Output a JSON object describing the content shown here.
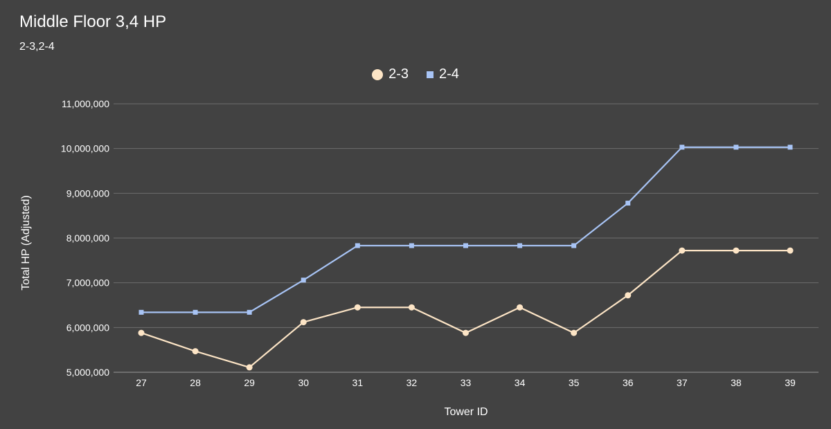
{
  "title": "Middle Floor 3,4 HP",
  "subtitle": "2-3,2-4",
  "chart_data": {
    "type": "line",
    "title": "Middle Floor 3,4 HP",
    "subtitle": "2-3,2-4",
    "xlabel": "Tower ID",
    "ylabel": "Total HP (Adjusted)",
    "categories": [
      "27",
      "28",
      "29",
      "30",
      "31",
      "32",
      "33",
      "34",
      "35",
      "36",
      "37",
      "38",
      "39"
    ],
    "ylim": [
      5000000,
      11000000
    ],
    "yticks": [
      5000000,
      6000000,
      7000000,
      8000000,
      9000000,
      10000000,
      11000000
    ],
    "ytick_labels": [
      "5,000,000",
      "6,000,000",
      "7,000,000",
      "8,000,000",
      "9,000,000",
      "10,000,000",
      "11,000,000"
    ],
    "grid": true,
    "legend_position": "top",
    "series": [
      {
        "name": "2-3",
        "color": "#fde5c6",
        "marker": "circle",
        "values": [
          5880000,
          5470000,
          5110000,
          6120000,
          6450000,
          6450000,
          5880000,
          6450000,
          5880000,
          6720000,
          7720000,
          7720000,
          7720000
        ]
      },
      {
        "name": "2-4",
        "color": "#a8c4f5",
        "marker": "square",
        "values": [
          6340000,
          6340000,
          6340000,
          7060000,
          7830000,
          7830000,
          7830000,
          7830000,
          7830000,
          8780000,
          10030000,
          10030000,
          10030000
        ]
      }
    ]
  }
}
